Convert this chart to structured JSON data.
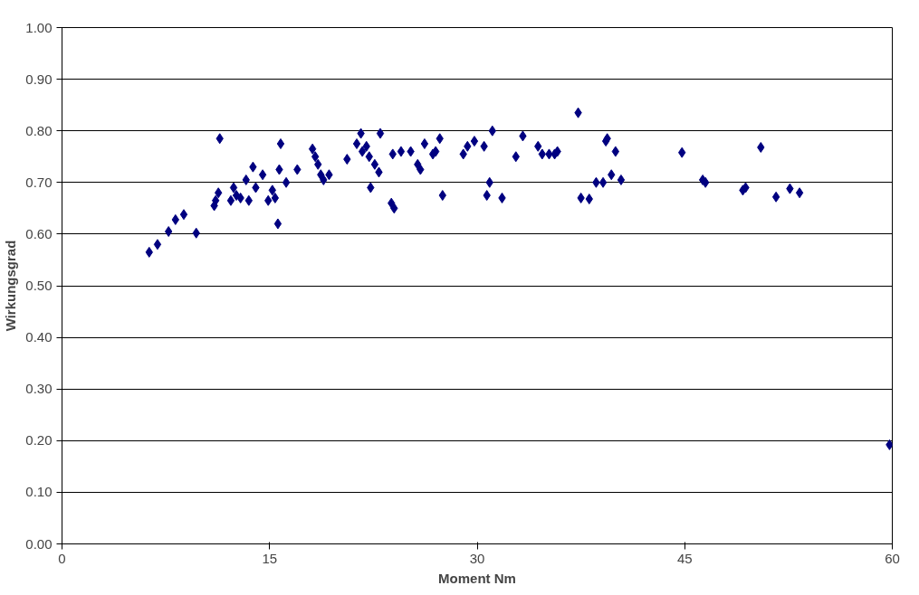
{
  "chart_data": {
    "type": "scatter",
    "xlabel": "Moment Nm",
    "ylabel": "Wirkungsgrad",
    "marker": "diamond",
    "grid": "y",
    "xlim": [
      0,
      60
    ],
    "xticks": [
      0,
      15,
      30,
      45,
      60
    ],
    "ylim": [
      0,
      1
    ],
    "yticks": [
      {
        "value": 0,
        "label": "0.00"
      },
      {
        "value": 0.1,
        "label": "0.10"
      },
      {
        "value": 0.2,
        "label": "0.20"
      },
      {
        "value": 0.3,
        "label": "0.30"
      },
      {
        "value": 0.4,
        "label": "0.40"
      },
      {
        "value": 0.5,
        "label": "0.50"
      },
      {
        "value": 0.6,
        "label": "0.60"
      },
      {
        "value": 0.7,
        "label": "0.70"
      },
      {
        "value": 0.8,
        "label": "0.80"
      },
      {
        "value": 0.9,
        "label": "0.90"
      },
      {
        "value": 1,
        "label": "1.00"
      }
    ],
    "series": [
      {
        "color": "#000080",
        "x": [
          6.3,
          6.9,
          7.7,
          8.2,
          8.8,
          9.7,
          11.0,
          11.1,
          11.3,
          11.4,
          12.2,
          12.4,
          12.6,
          12.9,
          13.3,
          13.5,
          13.8,
          14.0,
          14.5,
          14.9,
          15.2,
          15.4,
          15.6,
          15.7,
          15.8,
          16.2,
          17.0,
          18.1,
          18.3,
          18.5,
          18.7,
          18.9,
          19.3,
          20.6,
          21.3,
          21.6,
          21.7,
          22.0,
          22.2,
          22.3,
          22.6,
          22.9,
          23.0,
          23.8,
          24.0,
          23.9,
          24.5,
          25.2,
          25.7,
          25.9,
          26.2,
          26.8,
          27.0,
          27.3,
          27.5,
          29.0,
          29.3,
          29.8,
          30.5,
          30.7,
          30.9,
          31.1,
          31.8,
          32.8,
          33.3,
          34.4,
          34.7,
          35.2,
          35.6,
          35.8,
          37.3,
          37.5,
          38.1,
          38.6,
          39.1,
          39.3,
          39.4,
          39.7,
          40.0,
          40.4,
          44.8,
          46.3,
          46.5,
          49.2,
          49.4,
          50.5,
          51.6,
          52.6,
          53.3,
          59.8
        ],
        "values": [
          0.565,
          0.58,
          0.605,
          0.628,
          0.638,
          0.602,
          0.655,
          0.665,
          0.68,
          0.785,
          0.665,
          0.69,
          0.675,
          0.67,
          0.705,
          0.665,
          0.73,
          0.69,
          0.715,
          0.665,
          0.685,
          0.67,
          0.62,
          0.725,
          0.775,
          0.7,
          0.725,
          0.765,
          0.75,
          0.735,
          0.715,
          0.705,
          0.715,
          0.745,
          0.775,
          0.795,
          0.76,
          0.77,
          0.75,
          0.69,
          0.735,
          0.72,
          0.795,
          0.66,
          0.65,
          0.755,
          0.76,
          0.76,
          0.735,
          0.725,
          0.775,
          0.755,
          0.76,
          0.785,
          0.675,
          0.755,
          0.77,
          0.78,
          0.77,
          0.675,
          0.7,
          0.8,
          0.67,
          0.75,
          0.79,
          0.77,
          0.755,
          0.755,
          0.755,
          0.76,
          0.835,
          0.67,
          0.668,
          0.7,
          0.7,
          0.78,
          0.785,
          0.715,
          0.76,
          0.705,
          0.758,
          0.705,
          0.7,
          0.685,
          0.69,
          0.768,
          0.672,
          0.688,
          0.68,
          0.192
        ]
      }
    ]
  }
}
